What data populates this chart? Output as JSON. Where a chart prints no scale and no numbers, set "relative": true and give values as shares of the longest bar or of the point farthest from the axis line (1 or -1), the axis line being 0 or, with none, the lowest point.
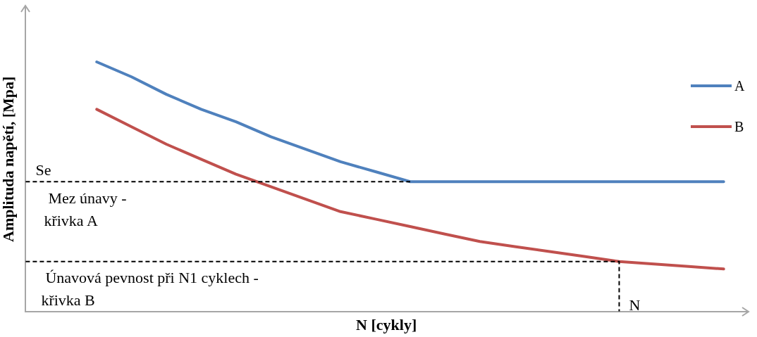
{
  "chart_data": {
    "type": "line",
    "relative": true,
    "xlabel": "N [cykly]",
    "ylabel": "Amplituda napětí, [Mpa]",
    "categories": [
      null,
      null,
      null,
      null,
      null,
      null,
      null,
      null,
      null,
      null,
      null,
      null,
      null,
      null,
      null,
      null,
      null,
      null,
      null
    ],
    "series": [
      {
        "name": "A",
        "color": "#4f81bd",
        "values": [
          1.0,
          0.94,
          0.87,
          0.81,
          0.76,
          0.7,
          0.65,
          0.6,
          0.56,
          0.52,
          0.52,
          0.52,
          0.52,
          0.52,
          0.52,
          0.52,
          0.52,
          0.52,
          0.52
        ]
      },
      {
        "name": "B",
        "color": "#c0504d",
        "values": [
          0.81,
          0.74,
          0.67,
          0.61,
          0.55,
          0.5,
          0.45,
          0.4,
          0.37,
          0.34,
          0.31,
          0.28,
          0.26,
          0.24,
          0.22,
          0.2,
          0.19,
          0.18,
          0.17
        ]
      }
    ],
    "ref_lines": [
      {
        "axis": "y",
        "value": 0.52,
        "label": "Se",
        "line_style": "dashed",
        "color": "#000000"
      },
      {
        "axis": "y",
        "value": 0.2,
        "label": "N",
        "line_style": "dashed",
        "color": "#000000"
      }
    ],
    "annotations": [
      "Mez únavy -\nkřivka A",
      "Únavová pevnost při N1 cyklech -\nkřivka B"
    ],
    "legend": "top right",
    "marker": "none",
    "line_style": "solid",
    "grid": false
  }
}
